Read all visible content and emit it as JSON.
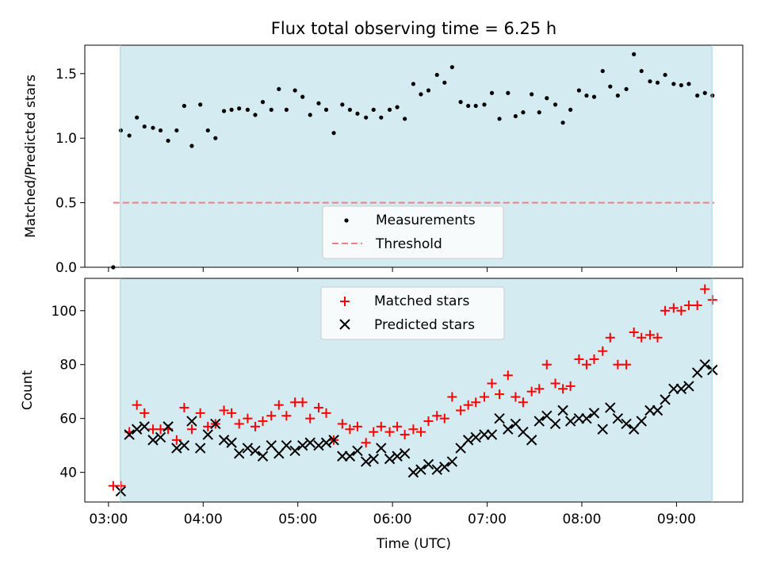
{
  "chart_data": [
    {
      "type": "scatter",
      "title": "Flux total observing time = 6.25 h",
      "ylabel": "Matched/Predicted stars",
      "xlabel": "",
      "x_unit": "hours UTC",
      "xlim": [
        2.75,
        9.7
      ],
      "ylim": [
        0,
        1.72
      ],
      "yticks": [
        0.0,
        0.5,
        1.0,
        1.5
      ],
      "ytick_labels": [
        "0.0",
        "0.5",
        "1.0",
        "1.5"
      ],
      "xticks": [
        3,
        4,
        5,
        6,
        7,
        8,
        9
      ],
      "xtick_labels": [
        "03:00",
        "04:00",
        "05:00",
        "06:00",
        "07:00",
        "08:00",
        "09:00"
      ],
      "shaded_span": [
        3.125,
        9.375
      ],
      "shade_color": "#d4ebf1",
      "threshold": {
        "name": "Threshold",
        "value": 0.5,
        "x_range": [
          3.05,
          9.4
        ],
        "color": "#f08080",
        "style": "dashed"
      },
      "legend_position": "lower-center",
      "series": [
        {
          "name": "Measurements",
          "marker": "dot",
          "color": "#000000",
          "x": [
            3.05,
            3.13,
            3.22,
            3.3,
            3.38,
            3.47,
            3.55,
            3.63,
            3.72,
            3.8,
            3.88,
            3.97,
            4.05,
            4.13,
            4.22,
            4.3,
            4.38,
            4.47,
            4.55,
            4.63,
            4.72,
            4.8,
            4.88,
            4.97,
            5.05,
            5.13,
            5.22,
            5.3,
            5.38,
            5.47,
            5.55,
            5.63,
            5.72,
            5.8,
            5.88,
            5.97,
            6.05,
            6.13,
            6.22,
            6.3,
            6.38,
            6.47,
            6.55,
            6.63,
            6.72,
            6.8,
            6.88,
            6.97,
            7.05,
            7.13,
            7.22,
            7.3,
            7.38,
            7.47,
            7.55,
            7.63,
            7.72,
            7.8,
            7.88,
            7.97,
            8.05,
            8.13,
            8.22,
            8.3,
            8.38,
            8.47,
            8.55,
            8.63,
            8.72,
            8.8,
            8.88,
            8.97,
            9.05,
            9.13,
            9.22,
            9.3,
            9.38
          ],
          "y": [
            0.0,
            1.06,
            1.02,
            1.16,
            1.09,
            1.08,
            1.06,
            0.98,
            1.06,
            1.25,
            0.94,
            1.26,
            1.06,
            1.0,
            1.21,
            1.22,
            1.23,
            1.22,
            1.18,
            1.28,
            1.22,
            1.38,
            1.22,
            1.37,
            1.32,
            1.18,
            1.27,
            1.22,
            1.04,
            1.26,
            1.22,
            1.19,
            1.16,
            1.22,
            1.16,
            1.22,
            1.24,
            1.15,
            1.42,
            1.34,
            1.37,
            1.49,
            1.43,
            1.55,
            1.28,
            1.25,
            1.25,
            1.26,
            1.35,
            1.15,
            1.35,
            1.17,
            1.2,
            1.34,
            1.2,
            1.31,
            1.26,
            1.12,
            1.22,
            1.37,
            1.33,
            1.32,
            1.52,
            1.4,
            1.33,
            1.38,
            1.65,
            1.52,
            1.44,
            1.43,
            1.49,
            1.42,
            1.41,
            1.42,
            1.33,
            1.35,
            1.33
          ]
        }
      ]
    },
    {
      "type": "scatter",
      "title": "",
      "ylabel": "Count",
      "xlabel": "Time (UTC)",
      "x_unit": "hours UTC",
      "xlim": [
        2.75,
        9.7
      ],
      "ylim": [
        29,
        112
      ],
      "yticks": [
        40,
        60,
        80,
        100
      ],
      "ytick_labels": [
        "40",
        "60",
        "80",
        "100"
      ],
      "xticks": [
        3,
        4,
        5,
        6,
        7,
        8,
        9
      ],
      "xtick_labels": [
        "03:00",
        "04:00",
        "05:00",
        "06:00",
        "07:00",
        "08:00",
        "09:00"
      ],
      "shaded_span": [
        3.125,
        9.375
      ],
      "shade_color": "#d4ebf1",
      "legend_position": "upper-center",
      "series": [
        {
          "name": "Matched stars",
          "marker": "plus",
          "color": "#ff0000",
          "x": [
            3.05,
            3.13,
            3.22,
            3.3,
            3.38,
            3.47,
            3.55,
            3.63,
            3.72,
            3.8,
            3.88,
            3.97,
            4.05,
            4.13,
            4.22,
            4.3,
            4.38,
            4.47,
            4.55,
            4.63,
            4.72,
            4.8,
            4.88,
            4.97,
            5.05,
            5.13,
            5.22,
            5.3,
            5.38,
            5.47,
            5.55,
            5.63,
            5.72,
            5.8,
            5.88,
            5.97,
            6.05,
            6.13,
            6.22,
            6.3,
            6.38,
            6.47,
            6.55,
            6.63,
            6.72,
            6.8,
            6.88,
            6.97,
            7.05,
            7.13,
            7.22,
            7.3,
            7.38,
            7.47,
            7.55,
            7.63,
            7.72,
            7.8,
            7.88,
            7.97,
            8.05,
            8.13,
            8.22,
            8.3,
            8.38,
            8.47,
            8.55,
            8.63,
            8.72,
            8.8,
            8.88,
            8.97,
            9.05,
            9.13,
            9.22,
            9.3,
            9.38
          ],
          "y": [
            35,
            35,
            55,
            65,
            62,
            56,
            56,
            56,
            52,
            64,
            56,
            62,
            57,
            58,
            63,
            62,
            58,
            60,
            57,
            59,
            61,
            65,
            61,
            66,
            66,
            60,
            64,
            62,
            52,
            58,
            56,
            57,
            51,
            55,
            57,
            55,
            57,
            54,
            56,
            55,
            59,
            61,
            60,
            68,
            63,
            65,
            66,
            68,
            73,
            69,
            76,
            68,
            66,
            70,
            71,
            80,
            73,
            71,
            72,
            82,
            80,
            82,
            85,
            90,
            80,
            80,
            92,
            90,
            91,
            90,
            100,
            101,
            100,
            102,
            102,
            108,
            104
          ]
        },
        {
          "name": "Predicted stars",
          "marker": "x",
          "color": "#000000",
          "x": [
            3.13,
            3.22,
            3.3,
            3.38,
            3.47,
            3.55,
            3.63,
            3.72,
            3.8,
            3.88,
            3.97,
            4.05,
            4.13,
            4.22,
            4.3,
            4.38,
            4.47,
            4.55,
            4.63,
            4.72,
            4.8,
            4.88,
            4.97,
            5.05,
            5.13,
            5.22,
            5.3,
            5.38,
            5.47,
            5.55,
            5.63,
            5.72,
            5.8,
            5.88,
            5.97,
            6.05,
            6.13,
            6.22,
            6.3,
            6.38,
            6.47,
            6.55,
            6.63,
            6.72,
            6.8,
            6.88,
            6.97,
            7.05,
            7.13,
            7.22,
            7.3,
            7.38,
            7.47,
            7.55,
            7.63,
            7.72,
            7.8,
            7.88,
            7.97,
            8.05,
            8.13,
            8.22,
            8.3,
            8.38,
            8.47,
            8.55,
            8.63,
            8.72,
            8.8,
            8.88,
            8.97,
            9.05,
            9.13,
            9.22,
            9.3,
            9.38
          ],
          "y": [
            33,
            54,
            56,
            57,
            52,
            53,
            57,
            49,
            50,
            59,
            49,
            54,
            58,
            52,
            51,
            47,
            49,
            48,
            46,
            50,
            47,
            50,
            48,
            50,
            51,
            50,
            51,
            52,
            46,
            46,
            48,
            44,
            45,
            49,
            45,
            46,
            47,
            40,
            41,
            43,
            41,
            42,
            44,
            49,
            52,
            53,
            54,
            54,
            60,
            56,
            58,
            55,
            52,
            59,
            61,
            58,
            63,
            59,
            60,
            60,
            62,
            56,
            64,
            60,
            58,
            56,
            59,
            63,
            63,
            67,
            71,
            71,
            72,
            77,
            80,
            78
          ]
        }
      ]
    }
  ]
}
